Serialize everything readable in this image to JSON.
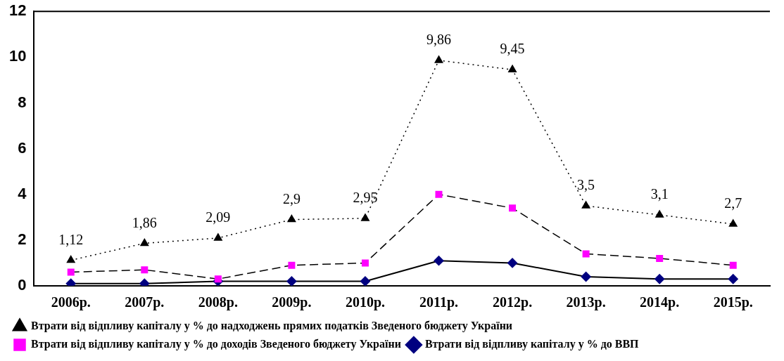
{
  "chart_data": {
    "type": "line",
    "categories": [
      "2006р.",
      "2007р.",
      "2008р.",
      "2009р.",
      "2010р.",
      "2011р.",
      "2012р.",
      "2013р.",
      "2014р.",
      "2015р."
    ],
    "ylim": [
      0,
      12
    ],
    "yticks": [
      0,
      2,
      4,
      6,
      8,
      10,
      12
    ],
    "grid": false,
    "legend": "bottom",
    "series": [
      {
        "name": "Втрати від відпливу капіталу у % до ВВП",
        "color": "#000080",
        "marker": "diamond",
        "line_style": "solid",
        "values": [
          0.1,
          0.1,
          0.2,
          0.2,
          0.2,
          1.1,
          1.0,
          0.4,
          0.3,
          0.3
        ]
      },
      {
        "name": "Втрати від відпливу капіталу у % до доходів Зведеного бюджету України",
        "color": "#ff00ff",
        "marker": "square",
        "line_style": "dashed",
        "values": [
          0.6,
          0.7,
          0.3,
          0.9,
          1.0,
          4.0,
          3.4,
          1.4,
          1.2,
          0.9
        ]
      },
      {
        "name": "Втрати від відпливу капіталу у % до надходжень прямих податків Зведеного бюджету України",
        "color": "#000000",
        "marker": "triangle",
        "line_style": "dotted",
        "values": [
          1.12,
          1.86,
          2.09,
          2.9,
          2.95,
          9.86,
          9.45,
          3.5,
          3.1,
          2.7
        ],
        "value_labels": [
          "1,12",
          "1,86",
          "2,09",
          "2,9",
          "2,95",
          "9,86",
          "9,45",
          "3,5",
          "3,1",
          "2,7"
        ]
      }
    ]
  }
}
